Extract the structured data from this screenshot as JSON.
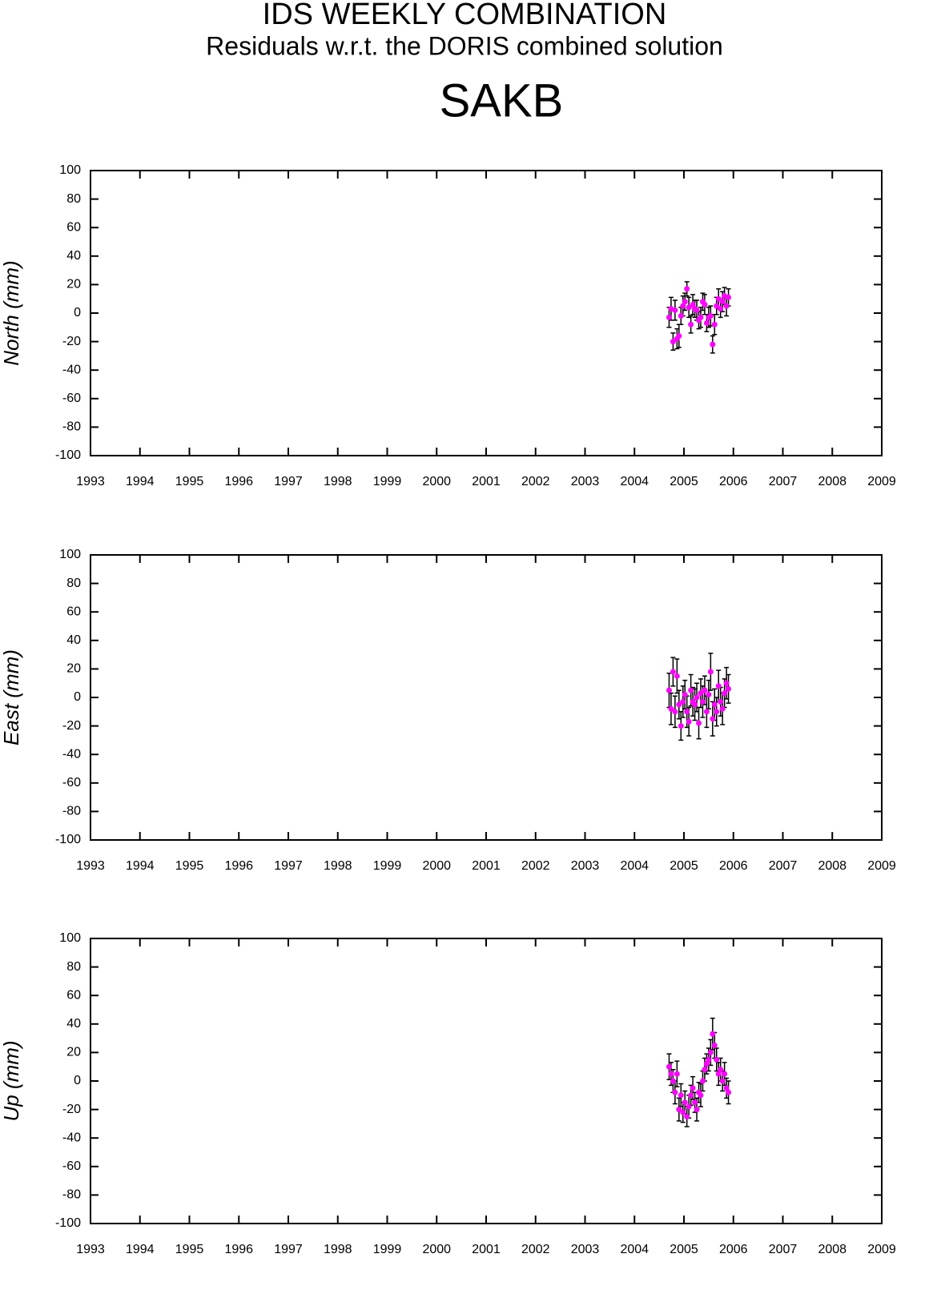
{
  "title": "IDS WEEKLY COMBINATION",
  "subtitle": "Residuals w.r.t. the DORIS combined solution",
  "station": "SAKB",
  "chart_data": [
    {
      "type": "scatter",
      "ylabel": "North (mm)",
      "color": "#ff00ff",
      "error_color": "#000000",
      "xlim": [
        1993,
        2009
      ],
      "xticks": [
        1993,
        1994,
        1995,
        1996,
        1997,
        1998,
        1999,
        2000,
        2001,
        2002,
        2003,
        2004,
        2005,
        2006,
        2007,
        2008,
        2009
      ],
      "ylim": [
        -100,
        100
      ],
      "yticks": [
        -100,
        -80,
        -60,
        -40,
        -20,
        0,
        20,
        40,
        60,
        80,
        100
      ],
      "x": [
        2004.7,
        2004.74,
        2004.78,
        2004.82,
        2004.86,
        2004.9,
        2004.94,
        2004.98,
        2005.02,
        2005.06,
        2005.1,
        2005.14,
        2005.18,
        2005.22,
        2005.26,
        2005.3,
        2005.34,
        2005.38,
        2005.42,
        2005.46,
        2005.5,
        2005.54,
        2005.58,
        2005.62,
        2005.66,
        2005.7,
        2005.74,
        2005.78,
        2005.82,
        2005.86,
        2005.9
      ],
      "values": [
        -3,
        3,
        -20,
        2,
        -18,
        -16,
        -2,
        5,
        8,
        17,
        4,
        -8,
        6,
        3,
        2,
        -5,
        -3,
        8,
        6,
        -7,
        -3,
        -2,
        -22,
        -8,
        5,
        10,
        3,
        8,
        12,
        5,
        11
      ],
      "errors": [
        7,
        8,
        6,
        7,
        7,
        8,
        6,
        7,
        6,
        5,
        7,
        6,
        7,
        6,
        7,
        6,
        7,
        6,
        7,
        6,
        7,
        7,
        6,
        7,
        6,
        7,
        6,
        7,
        6,
        7,
        6
      ]
    },
    {
      "type": "scatter",
      "ylabel": "East (mm)",
      "color": "#ff00ff",
      "error_color": "#000000",
      "xlim": [
        1993,
        2009
      ],
      "xticks": [
        1993,
        1994,
        1995,
        1996,
        1997,
        1998,
        1999,
        2000,
        2001,
        2002,
        2003,
        2004,
        2005,
        2006,
        2007,
        2008,
        2009
      ],
      "ylim": [
        -100,
        100
      ],
      "yticks": [
        -100,
        -80,
        -60,
        -40,
        -20,
        0,
        20,
        40,
        60,
        80,
        100
      ],
      "x": [
        2004.7,
        2004.74,
        2004.78,
        2004.82,
        2004.86,
        2004.9,
        2004.94,
        2004.98,
        2005.02,
        2005.06,
        2005.1,
        2005.14,
        2005.18,
        2005.22,
        2005.26,
        2005.3,
        2005.34,
        2005.38,
        2005.42,
        2005.46,
        2005.5,
        2005.54,
        2005.58,
        2005.62,
        2005.66,
        2005.7,
        2005.74,
        2005.78,
        2005.82,
        2005.86,
        2005.9
      ],
      "values": [
        5,
        -8,
        18,
        -10,
        15,
        -5,
        -20,
        -3,
        2,
        -10,
        -17,
        5,
        -3,
        -5,
        0,
        -18,
        3,
        -3,
        5,
        -10,
        2,
        18,
        -15,
        -5,
        -10,
        8,
        -3,
        -8,
        3,
        10,
        6
      ],
      "errors": [
        12,
        11,
        10,
        11,
        12,
        10,
        10,
        11,
        10,
        11,
        10,
        11,
        10,
        11,
        10,
        11,
        10,
        11,
        10,
        11,
        10,
        13,
        12,
        11,
        10,
        11,
        10,
        11,
        10,
        11,
        10
      ]
    },
    {
      "type": "scatter",
      "ylabel": "Up (mm)",
      "color": "#ff00ff",
      "error_color": "#000000",
      "xlim": [
        1993,
        2009
      ],
      "xticks": [
        1993,
        1994,
        1995,
        1996,
        1997,
        1998,
        1999,
        2000,
        2001,
        2002,
        2003,
        2004,
        2005,
        2006,
        2007,
        2008,
        2009
      ],
      "ylim": [
        -100,
        100
      ],
      "yticks": [
        -100,
        -80,
        -60,
        -40,
        -20,
        0,
        20,
        40,
        60,
        80,
        100
      ],
      "x": [
        2004.7,
        2004.74,
        2004.78,
        2004.82,
        2004.86,
        2004.9,
        2004.94,
        2004.98,
        2005.02,
        2005.06,
        2005.1,
        2005.14,
        2005.18,
        2005.22,
        2005.26,
        2005.3,
        2005.34,
        2005.38,
        2005.42,
        2005.46,
        2005.5,
        2005.54,
        2005.58,
        2005.62,
        2005.66,
        2005.7,
        2005.74,
        2005.78,
        2005.82,
        2005.86,
        2005.9
      ],
      "values": [
        10,
        5,
        0,
        -8,
        5,
        -20,
        -10,
        -22,
        -15,
        -25,
        -18,
        -10,
        -5,
        -15,
        -20,
        -8,
        -10,
        0,
        8,
        12,
        15,
        20,
        33,
        25,
        15,
        5,
        8,
        0,
        5,
        -5,
        -8
      ],
      "errors": [
        9,
        8,
        8,
        8,
        9,
        8,
        8,
        7,
        8,
        7,
        8,
        7,
        8,
        7,
        8,
        7,
        8,
        7,
        8,
        7,
        8,
        9,
        11,
        9,
        8,
        8,
        8,
        7,
        8,
        7,
        8
      ]
    }
  ]
}
